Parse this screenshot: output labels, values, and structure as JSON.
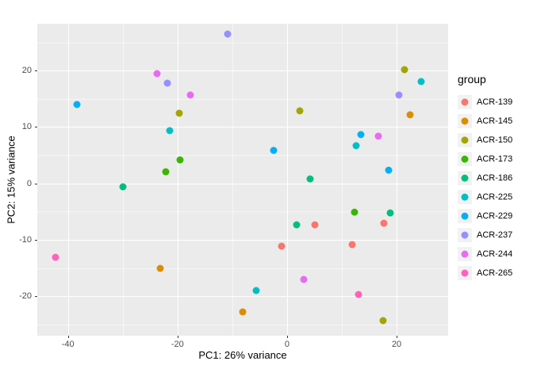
{
  "chart_data": {
    "type": "scatter",
    "title": "",
    "xlabel": "PC1: 26% variance",
    "ylabel": "PC2: 15% variance",
    "legend_title": "group",
    "legend_position": "right",
    "grid": true,
    "panel_bg": "#EBEBEB",
    "x_domain": [
      -45.6,
      29.4
    ],
    "y_domain": [
      -27.0,
      28.3
    ],
    "x_ticks": [
      -40,
      -20,
      0,
      20
    ],
    "y_ticks": [
      -20,
      -10,
      0,
      10,
      20
    ],
    "x_minor_ticks": [
      -30,
      -10,
      10
    ],
    "y_minor_ticks": [
      -25,
      -15,
      -5,
      5,
      15,
      25
    ],
    "series": [
      {
        "name": "ACR-139",
        "color": "#F8766D",
        "points": [
          [
            5.1,
            -7.3
          ],
          [
            17.7,
            -7.0
          ],
          [
            11.9,
            -10.8
          ],
          [
            -1.0,
            -11.2
          ]
        ]
      },
      {
        "name": "ACR-145",
        "color": "#DB8E00",
        "points": [
          [
            22.5,
            12.2
          ],
          [
            -23.2,
            -15.0
          ],
          [
            -8.1,
            -22.8
          ]
        ]
      },
      {
        "name": "ACR-150",
        "color": "#A3A500",
        "points": [
          [
            21.4,
            20.2
          ],
          [
            -19.7,
            12.5
          ],
          [
            2.3,
            12.9
          ],
          [
            17.5,
            -24.3
          ]
        ]
      },
      {
        "name": "ACR-173",
        "color": "#39B600",
        "points": [
          [
            -19.6,
            4.1
          ],
          [
            -22.2,
            2.1
          ],
          [
            12.3,
            -5.1
          ]
        ]
      },
      {
        "name": "ACR-186",
        "color": "#00BF7D",
        "points": [
          [
            -30.0,
            -0.6
          ],
          [
            4.2,
            0.8
          ],
          [
            18.8,
            -5.3
          ],
          [
            1.7,
            -7.4
          ]
        ]
      },
      {
        "name": "ACR-225",
        "color": "#00BFC4",
        "points": [
          [
            24.5,
            18.1
          ],
          [
            -21.4,
            9.3
          ],
          [
            12.6,
            6.7
          ],
          [
            -5.7,
            -19.0
          ]
        ]
      },
      {
        "name": "ACR-229",
        "color": "#00B0F6",
        "points": [
          [
            -38.4,
            14.0
          ],
          [
            13.5,
            8.7
          ],
          [
            -2.5,
            5.9
          ],
          [
            18.6,
            2.4
          ]
        ]
      },
      {
        "name": "ACR-237",
        "color": "#9590FF",
        "points": [
          [
            -10.9,
            26.5
          ],
          [
            -21.9,
            17.8
          ],
          [
            20.4,
            15.6
          ]
        ]
      },
      {
        "name": "ACR-244",
        "color": "#E76BF3",
        "points": [
          [
            -23.8,
            19.4
          ],
          [
            -17.7,
            15.6
          ],
          [
            16.7,
            8.4
          ],
          [
            3.0,
            -17.0
          ]
        ]
      },
      {
        "name": "ACR-265",
        "color": "#FF62BC",
        "points": [
          [
            -42.3,
            -13.1
          ],
          [
            13.0,
            -19.7
          ]
        ]
      }
    ]
  }
}
